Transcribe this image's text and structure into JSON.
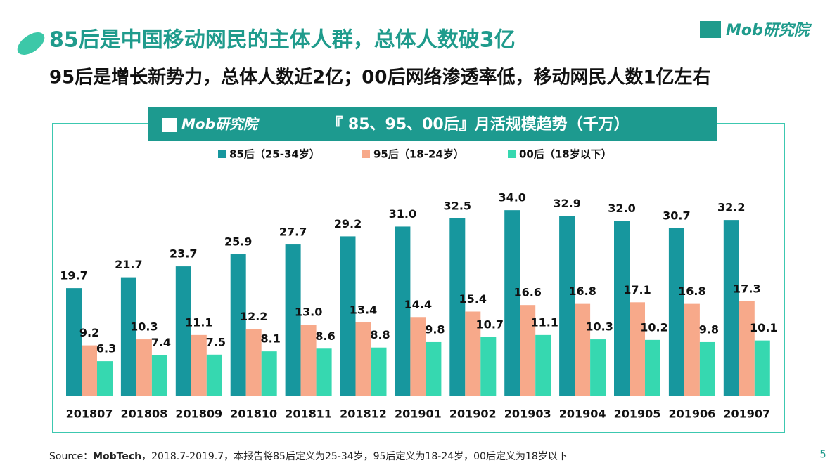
{
  "header": {
    "title": "85后是中国移动网民的主体人群，总体人数破3亿",
    "subtitle": "95后是增长新势力，总体人数近2亿；00后网络渗透率低，移动网民人数1亿左右",
    "logo": "Mob研究院"
  },
  "chart_data": {
    "type": "bar",
    "title": "『 85、95、00后』月活规模趋势（千万）",
    "logo": "Mob研究院",
    "categories": [
      "201807",
      "201808",
      "201809",
      "201810",
      "201811",
      "201812",
      "201901",
      "201902",
      "201903",
      "201904",
      "201905",
      "201906",
      "201907"
    ],
    "series": [
      {
        "name": "85后（25-34岁）",
        "color": "#17979e",
        "values": [
          19.7,
          21.7,
          23.7,
          25.9,
          27.7,
          29.2,
          31.0,
          32.5,
          34.0,
          32.9,
          32.0,
          30.7,
          32.2
        ],
        "value_labels": [
          "19.7",
          "21.7",
          "23.7",
          "25.9",
          "27.7",
          "29.2",
          "31.0",
          "32.5",
          "34.0",
          "32.9",
          "32.0",
          "30.7",
          "32.2"
        ]
      },
      {
        "name": "95后（18-24岁）",
        "color": "#f7a98a",
        "values": [
          9.2,
          10.3,
          11.1,
          12.2,
          13.0,
          13.4,
          14.4,
          15.4,
          16.6,
          16.8,
          17.1,
          16.8,
          17.3
        ],
        "value_labels": [
          "9.2",
          "10.3",
          "11.1",
          "12.2",
          "13.0",
          "13.4",
          "14.4",
          "15.4",
          "16.6",
          "16.8",
          "17.1",
          "16.8",
          "17.3"
        ]
      },
      {
        "name": "00后（18岁以下）",
        "color": "#36d8b0",
        "values": [
          6.3,
          7.4,
          7.5,
          8.1,
          8.6,
          8.8,
          9.8,
          10.7,
          11.1,
          10.3,
          10.2,
          9.8,
          10.1
        ],
        "value_labels": [
          "6.3",
          "7.4",
          "7.5",
          "8.1",
          "8.6",
          "8.8",
          "9.8",
          "10.7",
          "11.1",
          "10.3",
          "10.2",
          "9.8",
          "10.1"
        ]
      }
    ]
  },
  "footer": {
    "source_label": "Source：",
    "source_name": "MobTech",
    "source_text": "，2018.7-2019.7，本报告将85后定义为25-34岁，95后定义为18-24岁，00后定义为18岁以下",
    "page_number": "5"
  }
}
